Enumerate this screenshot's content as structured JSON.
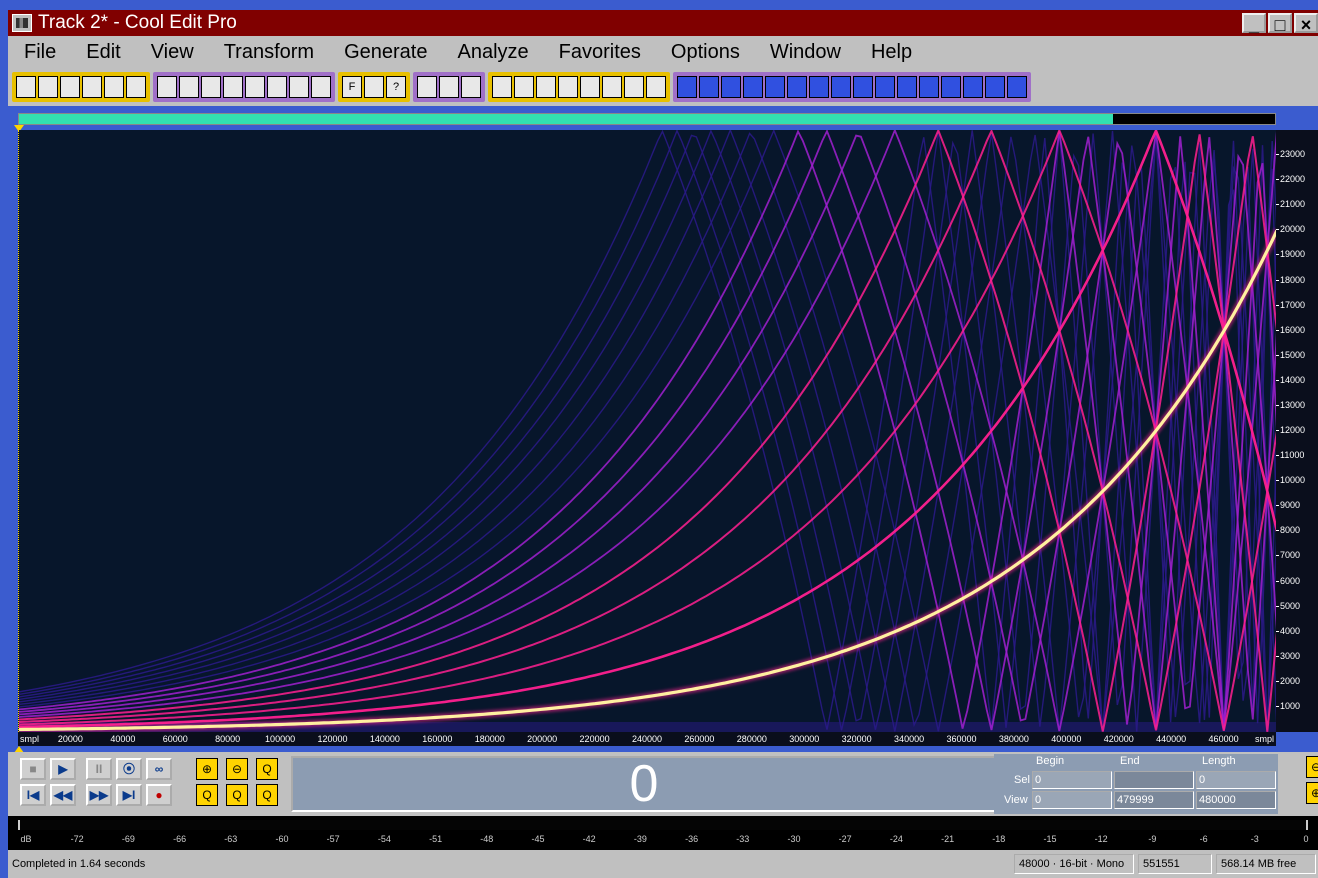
{
  "window": {
    "title": "Track 2* - Cool Edit Pro",
    "controls": [
      "_",
      "□",
      "×"
    ]
  },
  "menu": [
    "File",
    "Edit",
    "View",
    "Transform",
    "Generate",
    "Analyze",
    "Favorites",
    "Options",
    "Window",
    "Help"
  ],
  "toolbar": {
    "groups": [
      {
        "color": "#e8c000",
        "icons": [
          "multitrack-toggle-icon",
          "new-file-icon",
          "open-file-icon",
          "save-icon",
          "save-as-icon",
          "close-file-icon"
        ]
      },
      {
        "color": "#a070c8",
        "icons": [
          "cut-icon",
          "copy-icon",
          "paste-icon",
          "mix-paste-icon",
          "paste-new-icon",
          "trim-icon",
          "properties-icon",
          "cd-icon"
        ]
      },
      {
        "color": "#e8c000",
        "icons": [
          "f-icon",
          "script-icon",
          "help-icon"
        ]
      },
      {
        "color": "#a070c8",
        "icons": [
          "waveform-view-icon",
          "spectral-view-icon",
          "spectral-pan-icon"
        ]
      },
      {
        "color": "#e8c000",
        "icons": [
          "amplify-icon",
          "envelope-icon",
          "normalize-icon",
          "dynamics-icon",
          "wave-icon",
          "pan-icon",
          "stretch-icon",
          "fade-icon"
        ]
      },
      {
        "color": "#a070c8",
        "icons": [
          "filter-icon",
          "fft-filter-icon",
          "noise-icon",
          "vibrato-icon",
          "delay-icon",
          "echo-icon",
          "reverb-icon",
          "eq-icon",
          "bandpass-icon",
          "chorus-icon",
          "flanger-icon",
          "pitch-icon",
          "brightness-icon",
          "stereo-icon",
          "phase-icon",
          "settings-icon"
        ]
      }
    ],
    "labels": {
      "f": "F",
      "q": "?"
    }
  },
  "progress": {
    "fraction": 0.871
  },
  "spectrogram": {
    "colors": {
      "background": "#07162b",
      "low": "#2a1a8a",
      "mid": "#a020d0",
      "high": "#ff2090",
      "peak": "#fff0a0"
    },
    "harmonics": 16,
    "sweep": {
      "start_hz": 100,
      "end_hz": 20000,
      "duration_samples": 480000
    },
    "nyquist_hz": 24000
  },
  "y_axis": {
    "unit": "Hz",
    "ticks": [
      "1000",
      "2000",
      "3000",
      "4000",
      "5000",
      "6000",
      "7000",
      "8000",
      "9000",
      "10000",
      "11000",
      "12000",
      "13000",
      "14000",
      "15000",
      "16000",
      "17000",
      "18000",
      "19000",
      "20000",
      "21000",
      "22000",
      "23000"
    ],
    "max": 24000
  },
  "x_axis": {
    "unit_left": "smpl",
    "unit_right": "smpl",
    "ticks": [
      "20000",
      "40000",
      "60000",
      "80000",
      "100000",
      "120000",
      "140000",
      "160000",
      "180000",
      "200000",
      "220000",
      "240000",
      "260000",
      "280000",
      "300000",
      "320000",
      "340000",
      "360000",
      "380000",
      "400000",
      "420000",
      "440000",
      "460000"
    ],
    "max": 480000
  },
  "transport": {
    "time_display": "0",
    "buttons": [
      "■",
      "▶",
      "II",
      "⦿",
      "∞",
      "I◀",
      "◀◀",
      "▶▶",
      "▶I",
      "●"
    ],
    "zoom_buttons": [
      "⊕",
      "⊖",
      "Q",
      "Q",
      "Q",
      "Q"
    ]
  },
  "selection": {
    "headers": {
      "begin": "Begin",
      "end": "End",
      "length": "Length"
    },
    "sel": {
      "label": "Sel",
      "begin": "0",
      "end": "",
      "length": "0"
    },
    "view": {
      "label": "View",
      "begin": "0",
      "end": "479999",
      "length": "480000"
    }
  },
  "level_meter": {
    "ticks": [
      "dB",
      "-72",
      "-69",
      "-66",
      "-63",
      "-60",
      "-57",
      "-54",
      "-51",
      "-48",
      "-45",
      "-42",
      "-39",
      "-36",
      "-33",
      "-30",
      "-27",
      "-24",
      "-21",
      "-18",
      "-15",
      "-12",
      "-9",
      "-6",
      "-3",
      "0"
    ]
  },
  "status": {
    "message": "Completed in 1.64 seconds",
    "format": "48000 · 16-bit · Mono",
    "samples": "551551",
    "free": "568.14 MB free"
  }
}
